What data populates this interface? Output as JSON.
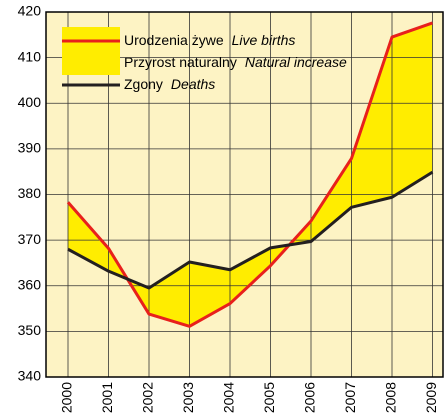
{
  "chart_data": {
    "type": "line",
    "categories": [
      "2000",
      "2001",
      "2002",
      "2003",
      "2004",
      "2005",
      "2006",
      "2007",
      "2008",
      "2009"
    ],
    "series": [
      {
        "name": "Urodzenia żywe",
        "name_en": "Live births",
        "color": "#e8201c",
        "values": [
          378.3,
          368.2,
          353.8,
          351.1,
          356.1,
          364.4,
          374.2,
          387.9,
          414.5,
          417.6
        ]
      },
      {
        "name": "Zgony",
        "name_en": "Deaths",
        "color": "#231f20",
        "values": [
          368.0,
          363.2,
          359.5,
          365.2,
          363.5,
          368.3,
          369.7,
          377.2,
          379.4,
          384.9
        ]
      }
    ],
    "fill": {
      "name": "Przyrost naturalny",
      "name_en": "Natural increase",
      "color": "#ffed00"
    },
    "background": "#fdf3c4",
    "ylim": [
      340,
      420
    ],
    "yticks": [
      340,
      350,
      360,
      370,
      380,
      390,
      400,
      410,
      420
    ],
    "grid": true
  }
}
